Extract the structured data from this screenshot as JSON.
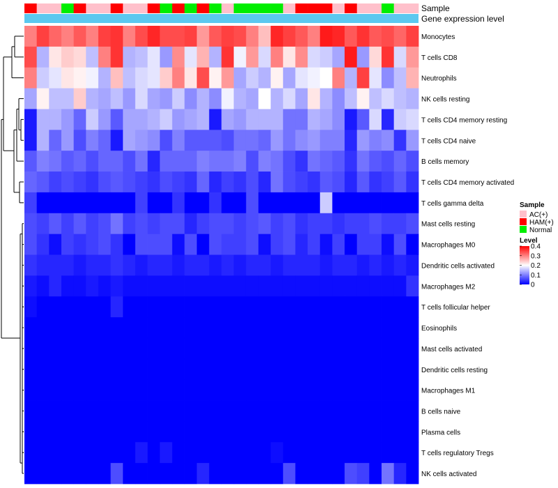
{
  "chart_data": {
    "type": "heatmap",
    "annotation_labels": [
      "Sample",
      "Gene expression level"
    ],
    "row_labels": [
      "Monocytes",
      "T cells CD8",
      "Neutrophils",
      "NK cells resting",
      "T cells CD4 memory resting",
      "T cells CD4 naive",
      "B cells memory",
      "T cells CD4 memory activated",
      "T cells gamma delta",
      "Mast cells resting",
      "Macrophages M0",
      "Dendritic cells activated",
      "Macrophages M2",
      "T cells follicular helper",
      "Eosinophils",
      "Mast cells activated",
      "Dendritic cells resting",
      "Macrophages M1",
      "B cells naive",
      "Plasma cells",
      "T cells regulatory  Tregs",
      "NK cells activated"
    ],
    "samples": [
      "H",
      "A",
      "A",
      "N",
      "H",
      "A",
      "A",
      "H",
      "A",
      "A",
      "H",
      "N",
      "H",
      "N",
      "H",
      "N",
      "A",
      "N",
      "N",
      "N",
      "N",
      "A",
      "H",
      "H",
      "H",
      "A",
      "H",
      "A",
      "A",
      "N",
      "A",
      "A"
    ],
    "sample_legend": {
      "title": "Sample",
      "entries": [
        {
          "code": "A",
          "label": "AC(+)",
          "color": "#ffc0cb"
        },
        {
          "code": "H",
          "label": "HAM(+)",
          "color": "#ff0000"
        },
        {
          "code": "N",
          "label": "Normal",
          "color": "#00ee00"
        }
      ]
    },
    "level_legend": {
      "title": "Level",
      "ticks": [
        0.4,
        0.3,
        0.2,
        0.1,
        0
      ]
    },
    "color_scale": {
      "min": 0,
      "max": 0.4,
      "low": "#0000ff",
      "mid": "#ffffff",
      "high": "#ff0000"
    },
    "annotation_bar_color": "#5bc8ef",
    "values": [
      [
        0.3,
        0.35,
        0.32,
        0.3,
        0.33,
        0.3,
        0.35,
        0.36,
        0.3,
        0.34,
        0.37,
        0.34,
        0.34,
        0.35,
        0.28,
        0.33,
        0.35,
        0.34,
        0.3,
        0.25,
        0.37,
        0.35,
        0.33,
        0.3,
        0.38,
        0.37,
        0.33,
        0.36,
        0.33,
        0.34,
        0.32,
        0.35
      ],
      [
        0.34,
        0.14,
        0.22,
        0.24,
        0.23,
        0.15,
        0.3,
        0.36,
        0.14,
        0.15,
        0.18,
        0.12,
        0.29,
        0.18,
        0.26,
        0.14,
        0.36,
        0.19,
        0.28,
        0.17,
        0.3,
        0.22,
        0.29,
        0.17,
        0.16,
        0.13,
        0.38,
        0.12,
        0.23,
        0.36,
        0.17,
        0.28
      ],
      [
        0.3,
        0.16,
        0.18,
        0.22,
        0.21,
        0.19,
        0.14,
        0.25,
        0.15,
        0.17,
        0.18,
        0.24,
        0.3,
        0.22,
        0.34,
        0.21,
        0.28,
        0.13,
        0.16,
        0.14,
        0.21,
        0.13,
        0.18,
        0.19,
        0.2,
        0.3,
        0.14,
        0.35,
        0.18,
        0.11,
        0.15,
        0.26
      ],
      [
        0.13,
        0.21,
        0.15,
        0.15,
        0.24,
        0.14,
        0.13,
        0.15,
        0.12,
        0.17,
        0.13,
        0.12,
        0.16,
        0.11,
        0.14,
        0.11,
        0.19,
        0.14,
        0.13,
        0.2,
        0.14,
        0.17,
        0.13,
        0.22,
        0.14,
        0.11,
        0.15,
        0.21,
        0.15,
        0.17,
        0.15,
        0.14
      ],
      [
        0.02,
        0.14,
        0.14,
        0.12,
        0.08,
        0.16,
        0.12,
        0.07,
        0.13,
        0.13,
        0.14,
        0.16,
        0.12,
        0.13,
        0.14,
        0.02,
        0.13,
        0.12,
        0.14,
        0.14,
        0.14,
        0.09,
        0.09,
        0.14,
        0.13,
        0.11,
        0.02,
        0.07,
        0.17,
        0.03,
        0.16,
        0.17
      ],
      [
        0.02,
        0.14,
        0.08,
        0.12,
        0.06,
        0.1,
        0.08,
        0.02,
        0.13,
        0.12,
        0.11,
        0.06,
        0.1,
        0.07,
        0.07,
        0.07,
        0.06,
        0.09,
        0.09,
        0.08,
        0.12,
        0.09,
        0.11,
        0.12,
        0.1,
        0.1,
        0.03,
        0.12,
        0.1,
        0.11,
        0.04,
        0.12
      ],
      [
        0.07,
        0.1,
        0.09,
        0.07,
        0.08,
        0.06,
        0.08,
        0.08,
        0.06,
        0.09,
        0.03,
        0.08,
        0.08,
        0.08,
        0.1,
        0.09,
        0.09,
        0.1,
        0.06,
        0.1,
        0.09,
        0.06,
        0.04,
        0.09,
        0.08,
        0.07,
        0.04,
        0.09,
        0.07,
        0.06,
        0.08,
        0.06
      ],
      [
        0.08,
        0.07,
        0.05,
        0.06,
        0.05,
        0.04,
        0.06,
        0.07,
        0.06,
        0.05,
        0.04,
        0.06,
        0.05,
        0.04,
        0.08,
        0.03,
        0.05,
        0.04,
        0.06,
        0.03,
        0.09,
        0.06,
        0.05,
        0.04,
        0.07,
        0.06,
        0.03,
        0.07,
        0.04,
        0.05,
        0.07,
        0.04
      ],
      [
        0.05,
        0.0,
        0.0,
        0.0,
        0.0,
        0.0,
        0.0,
        0.0,
        0.0,
        0.05,
        0.0,
        0.0,
        0.04,
        0.0,
        0.0,
        0.04,
        0.0,
        0.0,
        0.06,
        0.0,
        0.0,
        0.0,
        0.0,
        0.0,
        0.16,
        0.0,
        0.0,
        0.0,
        0.0,
        0.0,
        0.0,
        0.0
      ],
      [
        0.06,
        0.05,
        0.07,
        0.05,
        0.07,
        0.05,
        0.06,
        0.09,
        0.05,
        0.06,
        0.05,
        0.06,
        0.06,
        0.03,
        0.05,
        0.06,
        0.06,
        0.05,
        0.06,
        0.07,
        0.05,
        0.06,
        0.04,
        0.05,
        0.05,
        0.04,
        0.05,
        0.05,
        0.06,
        0.05,
        0.05,
        0.06
      ],
      [
        0.06,
        0.04,
        0.01,
        0.05,
        0.04,
        0.05,
        0.06,
        0.04,
        0.0,
        0.06,
        0.06,
        0.06,
        0.01,
        0.06,
        0.0,
        0.06,
        0.05,
        0.05,
        0.06,
        0.01,
        0.05,
        0.06,
        0.03,
        0.05,
        0.01,
        0.05,
        0.0,
        0.05,
        0.05,
        0.01,
        0.06,
        0.0
      ],
      [
        0.04,
        0.03,
        0.03,
        0.03,
        0.02,
        0.03,
        0.03,
        0.04,
        0.03,
        0.02,
        0.03,
        0.03,
        0.02,
        0.03,
        0.03,
        0.02,
        0.03,
        0.02,
        0.03,
        0.03,
        0.02,
        0.03,
        0.03,
        0.03,
        0.02,
        0.03,
        0.03,
        0.02,
        0.03,
        0.02,
        0.03,
        0.02
      ],
      [
        0.02,
        0.01,
        0.03,
        0.01,
        0.01,
        0.02,
        0.01,
        0.02,
        0.01,
        0.01,
        0.01,
        0.01,
        0.01,
        0.01,
        0.01,
        0.01,
        0.01,
        0.01,
        0.01,
        0.01,
        0.01,
        0.01,
        0.01,
        0.01,
        0.01,
        0.01,
        0.01,
        0.01,
        0.01,
        0.01,
        0.01,
        0.04
      ],
      [
        0.01,
        0.0,
        0.0,
        0.0,
        0.0,
        0.0,
        0.0,
        0.03,
        0.0,
        0.0,
        0.0,
        0.0,
        0.0,
        0.0,
        0.0,
        0.0,
        0.0,
        0.0,
        0.0,
        0.0,
        0.0,
        0.0,
        0.0,
        0.0,
        0.0,
        0.0,
        0.0,
        0.0,
        0.0,
        0.0,
        0.0,
        0.0
      ],
      [
        0.0,
        0.0,
        0.0,
        0.0,
        0.0,
        0.0,
        0.0,
        0.0,
        0.0,
        0.0,
        0.0,
        0.0,
        0.0,
        0.0,
        0.0,
        0.0,
        0.0,
        0.0,
        0.0,
        0.0,
        0.0,
        0.0,
        0.0,
        0.0,
        0.0,
        0.0,
        0.0,
        0.0,
        0.0,
        0.0,
        0.0,
        0.0
      ],
      [
        0.0,
        0.0,
        0.0,
        0.0,
        0.0,
        0.0,
        0.0,
        0.0,
        0.0,
        0.0,
        0.0,
        0.0,
        0.0,
        0.0,
        0.0,
        0.0,
        0.0,
        0.0,
        0.0,
        0.0,
        0.0,
        0.0,
        0.0,
        0.0,
        0.0,
        0.0,
        0.0,
        0.0,
        0.0,
        0.0,
        0.0,
        0.0
      ],
      [
        0.0,
        0.0,
        0.0,
        0.0,
        0.0,
        0.0,
        0.0,
        0.0,
        0.0,
        0.0,
        0.0,
        0.0,
        0.0,
        0.0,
        0.0,
        0.0,
        0.0,
        0.0,
        0.0,
        0.0,
        0.0,
        0.0,
        0.0,
        0.0,
        0.0,
        0.0,
        0.0,
        0.0,
        0.0,
        0.0,
        0.0,
        0.0
      ],
      [
        0.0,
        0.0,
        0.0,
        0.0,
        0.0,
        0.0,
        0.0,
        0.0,
        0.0,
        0.0,
        0.0,
        0.0,
        0.0,
        0.0,
        0.0,
        0.0,
        0.0,
        0.0,
        0.0,
        0.0,
        0.0,
        0.0,
        0.0,
        0.0,
        0.0,
        0.0,
        0.0,
        0.0,
        0.0,
        0.0,
        0.0,
        0.0
      ],
      [
        0.0,
        0.0,
        0.0,
        0.0,
        0.0,
        0.0,
        0.0,
        0.0,
        0.0,
        0.0,
        0.0,
        0.0,
        0.0,
        0.0,
        0.0,
        0.0,
        0.0,
        0.0,
        0.0,
        0.0,
        0.0,
        0.0,
        0.0,
        0.0,
        0.0,
        0.0,
        0.0,
        0.0,
        0.0,
        0.0,
        0.0,
        0.0
      ],
      [
        0.0,
        0.0,
        0.0,
        0.0,
        0.0,
        0.0,
        0.0,
        0.0,
        0.0,
        0.0,
        0.0,
        0.0,
        0.0,
        0.0,
        0.0,
        0.0,
        0.0,
        0.0,
        0.0,
        0.0,
        0.0,
        0.0,
        0.0,
        0.0,
        0.0,
        0.0,
        0.0,
        0.0,
        0.0,
        0.0,
        0.0,
        0.0
      ],
      [
        0.0,
        0.0,
        0.0,
        0.0,
        0.0,
        0.0,
        0.0,
        0.0,
        0.0,
        0.02,
        0.0,
        0.02,
        0.0,
        0.0,
        0.0,
        0.0,
        0.0,
        0.0,
        0.0,
        0.0,
        0.01,
        0.0,
        0.0,
        0.0,
        0.0,
        0.0,
        0.0,
        0.0,
        0.0,
        0.0,
        0.0,
        0.0
      ],
      [
        0.0,
        0.0,
        0.0,
        0.0,
        0.0,
        0.0,
        0.0,
        0.06,
        0.0,
        0.0,
        0.0,
        0.0,
        0.0,
        0.0,
        0.03,
        0.0,
        0.0,
        0.0,
        0.0,
        0.0,
        0.0,
        0.06,
        0.0,
        0.0,
        0.0,
        0.0,
        0.06,
        0.05,
        0.0,
        0.09,
        0.03,
        0.0
      ]
    ]
  }
}
